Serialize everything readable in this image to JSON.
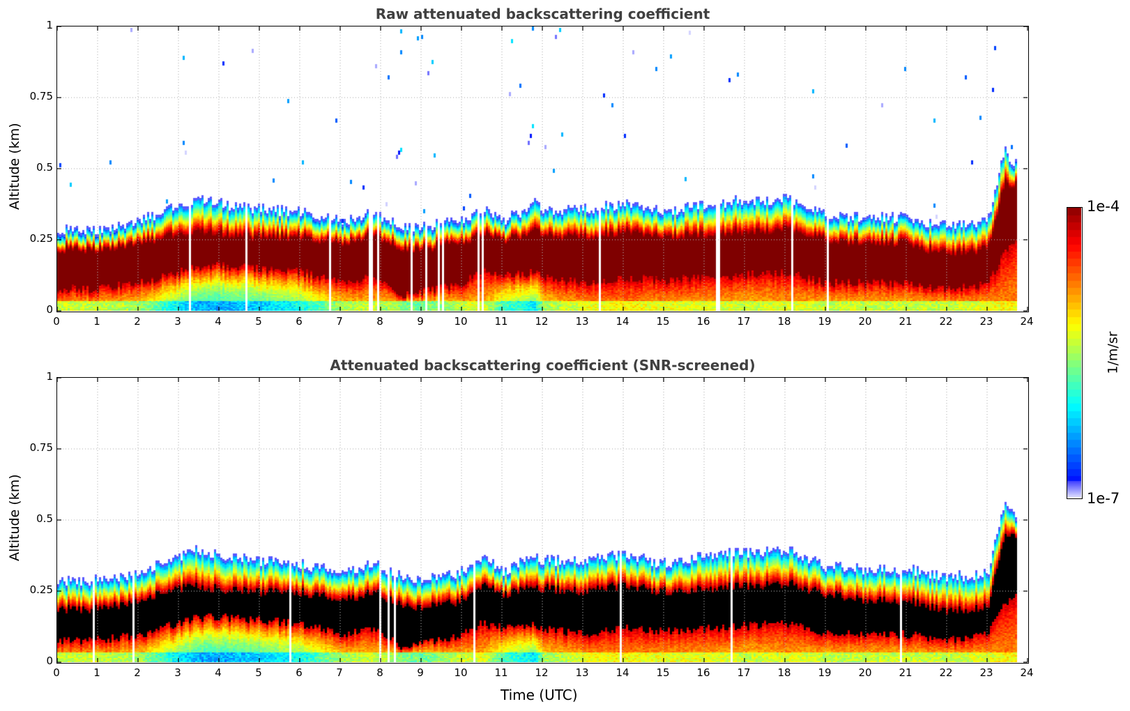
{
  "colors": {
    "title": "#404040",
    "axis": "#000000",
    "grid": "#b0b0b0",
    "core_masked": "#000000"
  },
  "colormap": {
    "name": "jet",
    "label": "1/m/sr",
    "min_label": "1e-7",
    "max_label": "1e-4",
    "log10_min": -7,
    "log10_max": -4
  },
  "xaxis": {
    "label": "Time (UTC)",
    "range": [
      0,
      24
    ],
    "ticks": [
      "0",
      "1",
      "2",
      "3",
      "4",
      "5",
      "6",
      "7",
      "8",
      "9",
      "10",
      "11",
      "12",
      "13",
      "14",
      "15",
      "16",
      "17",
      "18",
      "19",
      "20",
      "21",
      "22",
      "23",
      "24"
    ]
  },
  "chart_data": [
    {
      "type": "heatmap",
      "title": "Raw attenuated backscattering coefficient",
      "xlabel": "Time (UTC)",
      "ylabel": "Altitude (km)",
      "xlim": [
        0,
        24
      ],
      "ylim": [
        0,
        1
      ],
      "yticks": [
        "0",
        "0.25",
        "0.5",
        "0.75",
        "1"
      ],
      "ytick_values": [
        0,
        0.25,
        0.5,
        0.75,
        1
      ],
      "grid": true,
      "screened": false,
      "data_end_hour": 23.7,
      "time_h": [
        0,
        1,
        2,
        3,
        3.5,
        4,
        5,
        6,
        7,
        7.8,
        8.5,
        9,
        10,
        10.5,
        11,
        11.8,
        12,
        13,
        14,
        15,
        16,
        17,
        18,
        19,
        20,
        21,
        22,
        23,
        23.4,
        23.7
      ],
      "layer_top_km": [
        0.27,
        0.27,
        0.3,
        0.35,
        0.38,
        0.36,
        0.34,
        0.33,
        0.3,
        0.33,
        0.28,
        0.28,
        0.3,
        0.35,
        0.3,
        0.36,
        0.34,
        0.34,
        0.36,
        0.33,
        0.36,
        0.37,
        0.38,
        0.32,
        0.31,
        0.31,
        0.28,
        0.3,
        0.55,
        0.5
      ],
      "core_top_km": [
        0.22,
        0.22,
        0.24,
        0.27,
        0.28,
        0.27,
        0.26,
        0.26,
        0.24,
        0.27,
        0.22,
        0.22,
        0.24,
        0.28,
        0.25,
        0.28,
        0.27,
        0.26,
        0.28,
        0.26,
        0.27,
        0.28,
        0.29,
        0.25,
        0.24,
        0.24,
        0.2,
        0.22,
        0.45,
        0.45
      ],
      "core_bottom_km": [
        0.08,
        0.08,
        0.1,
        0.14,
        0.16,
        0.16,
        0.15,
        0.14,
        0.1,
        0.12,
        0.06,
        0.07,
        0.1,
        0.14,
        0.12,
        0.14,
        0.12,
        0.1,
        0.12,
        0.11,
        0.12,
        0.13,
        0.14,
        0.1,
        0.1,
        0.1,
        0.08,
        0.1,
        0.2,
        0.25
      ],
      "near_surface_log10": [
        -5.0,
        -5.0,
        -5.1,
        -5.7,
        -5.9,
        -5.9,
        -5.8,
        -5.6,
        -5.1,
        -5.0,
        -5.2,
        -5.3,
        -5.0,
        -4.9,
        -5.4,
        -5.7,
        -5.1,
        -4.9,
        -4.8,
        -4.9,
        -4.9,
        -5.0,
        -4.9,
        -5.0,
        -5.0,
        -5.0,
        -5.0,
        -4.9,
        -4.8,
        -4.8
      ],
      "noise_above_layer": "sparse low-value returns up to 1 km, densest 7-14 UTC"
    },
    {
      "type": "heatmap",
      "title": "Attenuated backscattering coefficient (SNR-screened)",
      "xlabel": "Time (UTC)",
      "ylabel": "Altitude (km)",
      "xlim": [
        0,
        24
      ],
      "ylim": [
        0,
        1
      ],
      "yticks": [
        "0",
        "0.25",
        "0.5",
        "0.75",
        "1"
      ],
      "ytick_values": [
        0,
        0.25,
        0.5,
        0.75,
        1
      ],
      "grid": true,
      "screened": true,
      "data_end_hour": 23.7,
      "time_h": [
        0,
        1,
        2,
        3,
        3.5,
        4,
        5,
        6,
        7,
        7.8,
        8.5,
        9,
        10,
        10.5,
        11,
        11.8,
        12,
        13,
        14,
        15,
        16,
        17,
        18,
        19,
        20,
        21,
        22,
        23,
        23.4,
        23.7
      ],
      "layer_top_km": [
        0.27,
        0.27,
        0.3,
        0.35,
        0.38,
        0.36,
        0.34,
        0.33,
        0.3,
        0.33,
        0.28,
        0.28,
        0.3,
        0.35,
        0.3,
        0.36,
        0.34,
        0.34,
        0.36,
        0.33,
        0.36,
        0.37,
        0.38,
        0.32,
        0.31,
        0.31,
        0.28,
        0.3,
        0.55,
        0.5
      ],
      "core_top_km": [
        0.19,
        0.19,
        0.22,
        0.26,
        0.27,
        0.26,
        0.25,
        0.25,
        0.22,
        0.25,
        0.2,
        0.2,
        0.22,
        0.27,
        0.24,
        0.27,
        0.26,
        0.25,
        0.27,
        0.25,
        0.26,
        0.27,
        0.28,
        0.24,
        0.22,
        0.22,
        0.18,
        0.2,
        0.45,
        0.45
      ],
      "core_bottom_km": [
        0.08,
        0.08,
        0.1,
        0.14,
        0.16,
        0.16,
        0.15,
        0.14,
        0.1,
        0.12,
        0.06,
        0.07,
        0.1,
        0.14,
        0.12,
        0.14,
        0.12,
        0.1,
        0.12,
        0.11,
        0.12,
        0.13,
        0.14,
        0.1,
        0.1,
        0.1,
        0.08,
        0.1,
        0.2,
        0.25
      ],
      "near_surface_log10": [
        -5.0,
        -5.0,
        -5.1,
        -5.7,
        -5.9,
        -5.9,
        -5.8,
        -5.6,
        -5.1,
        -5.0,
        -5.2,
        -5.3,
        -5.0,
        -4.9,
        -5.4,
        -5.7,
        -5.1,
        -4.9,
        -4.8,
        -4.9,
        -4.9,
        -5.0,
        -4.9,
        -5.0,
        -5.0,
        -5.0,
        -5.0,
        -4.9,
        -4.8,
        -4.8
      ],
      "noise_above_layer": "none (screened)"
    }
  ]
}
